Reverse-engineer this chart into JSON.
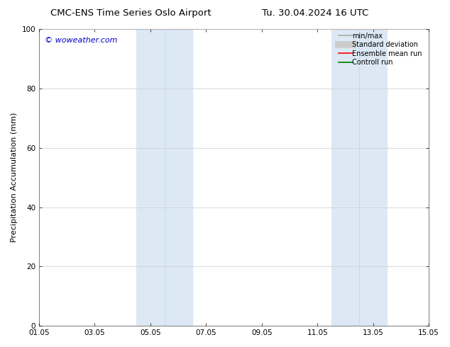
{
  "title_left": "CMC-ENS Time Series Oslo Airport",
  "title_right": "Tu. 30.04.2024 16 UTC",
  "ylabel": "Precipitation Accumulation (mm)",
  "watermark": "© woweather.com",
  "watermark_color": "#0000cc",
  "ylim": [
    0,
    100
  ],
  "xtick_labels": [
    "01.05",
    "03.05",
    "05.05",
    "07.05",
    "09.05",
    "11.05",
    "13.05",
    "15.05"
  ],
  "xtick_positions": [
    0,
    2,
    4,
    6,
    8,
    10,
    12,
    14
  ],
  "ytick_positions": [
    0,
    20,
    40,
    60,
    80,
    100
  ],
  "shaded_regions": [
    {
      "xmin": 3.5,
      "xmax": 5.0,
      "color": "#dce9f5"
    },
    {
      "xmin": 5.0,
      "xmax": 5.5,
      "color": "#dce9f5"
    },
    {
      "xmin": 10.5,
      "xmax": 11.5,
      "color": "#dce9f5"
    },
    {
      "xmin": 11.5,
      "xmax": 12.5,
      "color": "#dce9f5"
    }
  ],
  "legend_items": [
    {
      "label": "min/max",
      "color": "#aaaaaa",
      "lw": 1.2,
      "style": "solid"
    },
    {
      "label": "Standard deviation",
      "color": "#cccccc",
      "lw": 6,
      "style": "solid"
    },
    {
      "label": "Ensemble mean run",
      "color": "#ff0000",
      "lw": 1.2,
      "style": "solid"
    },
    {
      "label": "Controll run",
      "color": "#007700",
      "lw": 1.2,
      "style": "solid"
    }
  ],
  "bg_color": "#ffffff",
  "axes_bg_color": "#ffffff",
  "grid_color": "#cccccc",
  "spine_color": "#888888",
  "title_fontsize": 9.5,
  "label_fontsize": 8,
  "tick_fontsize": 7.5,
  "watermark_fontsize": 8,
  "legend_fontsize": 7
}
